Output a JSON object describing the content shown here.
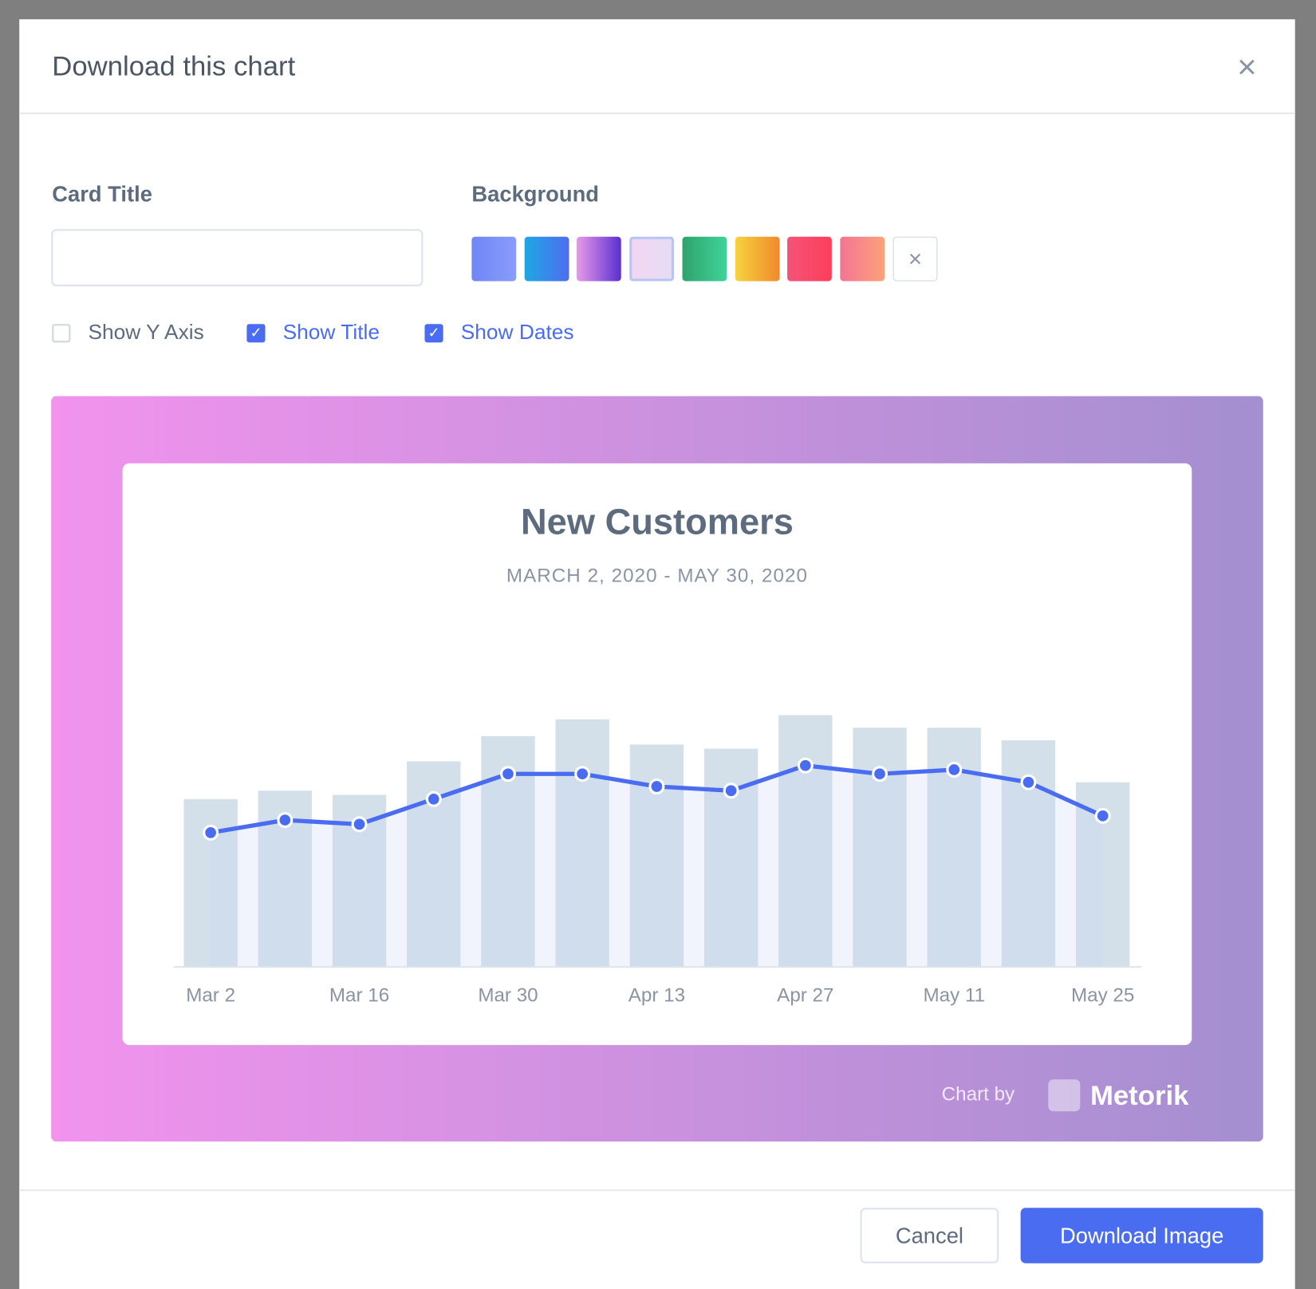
{
  "modal": {
    "title": "Download this chart",
    "card_title_label": "Card Title",
    "background_label": "Background",
    "swatches": [
      [
        "#6f86f5",
        "#8a9cfb"
      ],
      [
        "#1ea7e4",
        "#4f6df0"
      ],
      [
        "#e89ae8",
        "#5b2fd0"
      ],
      [
        "#f3d6f2",
        "#e6dcf4"
      ],
      [
        "#2fa36b",
        "#3fd39a"
      ],
      [
        "#f6d33e",
        "#f08a2c"
      ],
      [
        "#f5537a",
        "#fd3e5a"
      ],
      [
        "#f47493",
        "#fca27a"
      ]
    ],
    "selected_swatch": 3,
    "checkboxes": [
      {
        "label": "Show Y Axis",
        "checked": false
      },
      {
        "label": "Show Title",
        "checked": true
      },
      {
        "label": "Show Dates",
        "checked": true
      }
    ],
    "cancel": "Cancel",
    "download": "Download Image"
  },
  "preview": {
    "footer_prefix": "Chart by",
    "brand": "Metorik"
  },
  "chart_data": {
    "type": "bar",
    "title": "New Customers",
    "subtitle": "MARCH 2, 2020 - MAY 30, 2020",
    "categories": [
      "Mar 2",
      null,
      "Mar 16",
      null,
      "Mar 30",
      null,
      "Apr 13",
      null,
      "Apr 27",
      null,
      "May 11",
      null,
      "May 25"
    ],
    "ylim": [
      0,
      320
    ],
    "series": [
      {
        "type": "bar",
        "color": "#d3e0ea",
        "values": [
          200,
          210,
          205,
          245,
          275,
          295,
          265,
          260,
          300,
          285,
          285,
          270,
          220
        ]
      },
      {
        "type": "line",
        "color": "#4a6cf0",
        "values": [
          160,
          175,
          170,
          200,
          230,
          230,
          215,
          210,
          240,
          230,
          235,
          220,
          180
        ]
      }
    ]
  }
}
